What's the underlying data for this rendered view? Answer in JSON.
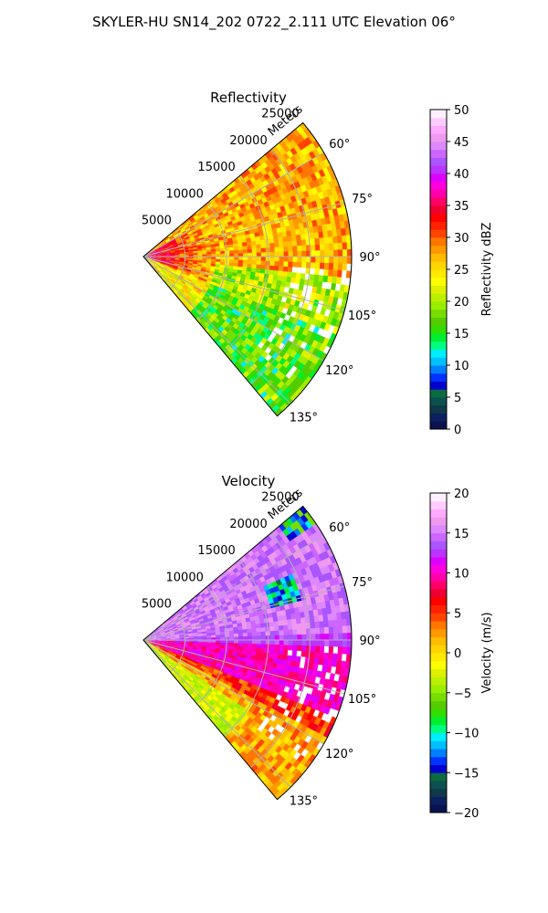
{
  "figure": {
    "title": "SKYLER-HU  SN14_202  0722_2.111 UTC Elevation 06°"
  },
  "chart_data": [
    {
      "type": "heatmap",
      "projection": "polar-sector",
      "title": "Reflectivity",
      "range_label": "Meters",
      "range_ticks": [
        5000,
        10000,
        15000,
        20000,
        25000
      ],
      "range_max": 25000,
      "azimuth_ticks": [
        "60°",
        "75°",
        "90°",
        "105°",
        "120°",
        "135°"
      ],
      "azimuth_range_deg": [
        50,
        140
      ],
      "colorbar": {
        "label": "Reflectivity dBZ",
        "vmin": 0,
        "vmax": 50,
        "ticks": [
          0,
          5,
          10,
          15,
          20,
          25,
          30,
          35,
          40,
          45,
          50
        ],
        "colors": [
          "#0a1250",
          "#0b2060",
          "#103848",
          "#0c5050",
          "#0a6a40",
          "#0000cc",
          "#0033ff",
          "#0080ff",
          "#00c0ff",
          "#00eeff",
          "#00ff80",
          "#00ee30",
          "#33dd00",
          "#55cc00",
          "#77dd00",
          "#99ee00",
          "#bbf000",
          "#ddf000",
          "#ffff00",
          "#ffea00",
          "#ffd500",
          "#ffbb00",
          "#ff9900",
          "#ff7700",
          "#ff4400",
          "#ff2200",
          "#ff0000",
          "#ee0030",
          "#ff0066",
          "#ff00aa",
          "#ff00dd",
          "#dd00ff",
          "#bb33ff",
          "#aa55ff",
          "#cc66ff",
          "#dd88ff",
          "#ee99ee",
          "#ffaaff",
          "#ffccff",
          "#fff0ff"
        ]
      },
      "description_levels_dbz": {
        "near_radar_core": 35,
        "dominant_field": 28,
        "lower_sector_patches": 20
      }
    },
    {
      "type": "heatmap",
      "projection": "polar-sector",
      "title": "Velocity",
      "range_label": "Meters",
      "range_ticks": [
        5000,
        10000,
        15000,
        20000,
        25000
      ],
      "range_max": 25000,
      "azimuth_ticks": [
        "60°",
        "75°",
        "90°",
        "105°",
        "120°",
        "135°"
      ],
      "azimuth_range_deg": [
        50,
        140
      ],
      "colorbar": {
        "label": "Velocity (m/s)",
        "vmin": -20,
        "vmax": 20,
        "ticks": [
          -20,
          -15,
          -10,
          -5,
          0,
          5,
          10,
          15,
          20
        ],
        "colors": [
          "#0a1250",
          "#0b2060",
          "#103848",
          "#0c5050",
          "#0a6a40",
          "#0000cc",
          "#0033ff",
          "#0080ff",
          "#00c0ff",
          "#00eeff",
          "#00ff80",
          "#00ee30",
          "#33dd00",
          "#55cc00",
          "#77dd00",
          "#99ee00",
          "#bbf000",
          "#ddf000",
          "#ffff00",
          "#ffea00",
          "#ffd500",
          "#ffbb00",
          "#ff9900",
          "#ff7700",
          "#ff4400",
          "#ff2200",
          "#ff0000",
          "#ee0030",
          "#ff0066",
          "#ff00aa",
          "#ff00dd",
          "#dd00ff",
          "#bb33ff",
          "#aa55ff",
          "#cc66ff",
          "#dd88ff",
          "#ee99ee",
          "#ffaaff",
          "#ffccff",
          "#fff0ff"
        ]
      },
      "description_levels_ms": {
        "azimuth_below_90": 16,
        "azimuth_90_to_110": 10,
        "azimuth_above_110": 3,
        "core_anomaly": -12
      }
    }
  ]
}
